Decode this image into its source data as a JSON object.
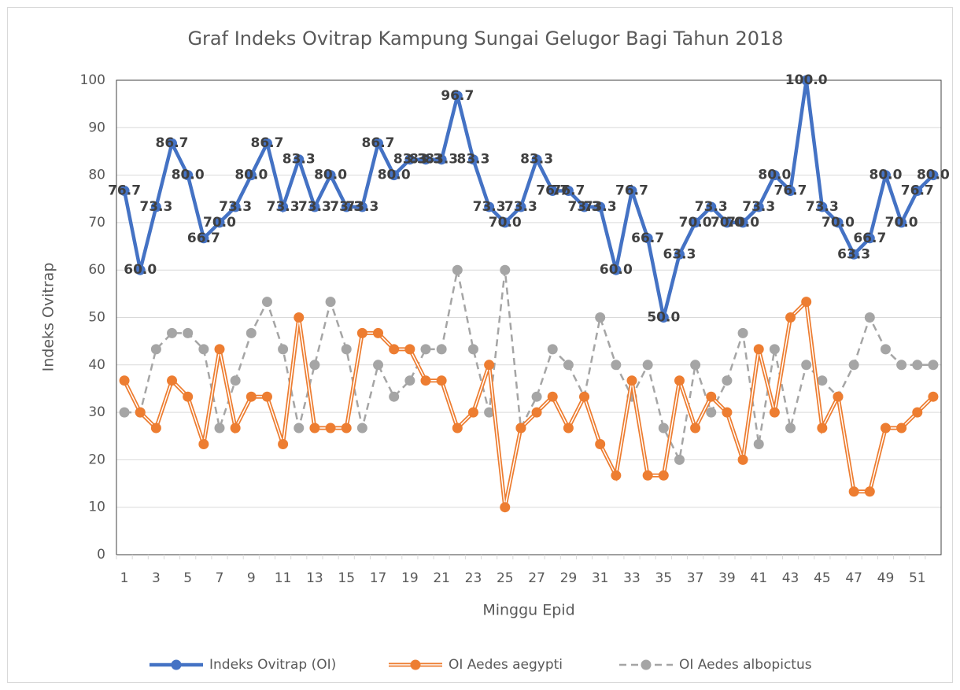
{
  "chart_data": {
    "type": "line",
    "title": "Graf Indeks Ovitrap Kampung Sungai Gelugor Bagi Tahun 2018",
    "x_label": "Minggu Epid",
    "y_label": "Indeks Ovitrap",
    "categories": [
      1,
      null,
      3,
      null,
      5,
      null,
      7,
      null,
      9,
      null,
      11,
      null,
      13,
      null,
      15,
      null,
      17,
      null,
      19,
      null,
      21,
      null,
      23,
      null,
      25,
      null,
      27,
      null,
      29,
      null,
      31,
      null,
      33,
      null,
      35,
      null,
      37,
      null,
      39,
      null,
      41,
      null,
      43,
      null,
      45,
      null,
      47,
      null,
      49,
      null,
      51,
      null
    ],
    "ylim": [
      0,
      100
    ],
    "yticks": [
      0,
      10,
      20,
      30,
      40,
      50,
      60,
      70,
      80,
      90,
      100
    ],
    "grid": true,
    "legend": "bottom",
    "series": [
      {
        "name": "Indeks Ovitrap (OI)",
        "color": "#4472c4",
        "style": "solid",
        "values": [
          76.7,
          60,
          73.3,
          86.7,
          80,
          66.7,
          70,
          73.3,
          80,
          86.7,
          73.3,
          83.3,
          73.3,
          80,
          73.3,
          73.3,
          86.7,
          80,
          83.3,
          83.3,
          83.3,
          96.7,
          83.3,
          73.3,
          70,
          73.3,
          83.3,
          76.7,
          76.7,
          73.3,
          73.3,
          60,
          76.7,
          66.7,
          50,
          63.3,
          70,
          73.3,
          70,
          70,
          73.3,
          80,
          76.7,
          100,
          73.3,
          70,
          63.3,
          66.7,
          80,
          70,
          76.7,
          80
        ],
        "value_labels": [
          "76.7",
          "60.0",
          "73.3",
          "86.7",
          "80.0",
          "66.7",
          "70.0",
          "73.3",
          "80.0",
          "86.7",
          "73.3",
          "83.3",
          "73.3",
          "80.0",
          "73.3",
          "73.3",
          "86.7",
          "80.0",
          "83.3",
          "83.3",
          "83.3",
          "96.7",
          "83.3",
          "73.3",
          "70.0",
          "73.3",
          "83.3",
          "76.7",
          "76.7",
          "73.3",
          "73.3",
          "60.0",
          "76.7",
          "66.7",
          "50.0",
          "63.3",
          "70.0",
          "73.3",
          "70.0",
          "70.0",
          "73.3",
          "80.0",
          "76.7",
          "100.0",
          "73.3",
          "70.0",
          "63.3",
          "66.7",
          "80.0",
          "70.0",
          "76.7",
          "80.0"
        ]
      },
      {
        "name": "OI Aedes aegypti",
        "color": "#ed7d31",
        "style": "double",
        "values": [
          36.7,
          30,
          26.7,
          36.7,
          33.3,
          23.3,
          43.3,
          26.7,
          33.3,
          33.3,
          23.3,
          50,
          26.7,
          26.7,
          26.7,
          46.7,
          46.7,
          43.3,
          43.3,
          36.7,
          36.7,
          26.7,
          30,
          40,
          10,
          26.7,
          30,
          33.3,
          26.7,
          33.3,
          23.3,
          16.7,
          36.7,
          16.7,
          16.7,
          36.7,
          26.7,
          33.3,
          30,
          20,
          43.3,
          30,
          50,
          53.3,
          26.7,
          33.3,
          13.3,
          13.3,
          26.7,
          26.7,
          30,
          33.3
        ]
      },
      {
        "name": "OI Aedes albopictus",
        "color": "#a5a5a5",
        "style": "dashed",
        "values": [
          30,
          30,
          43.3,
          46.7,
          46.7,
          43.3,
          26.7,
          36.7,
          46.7,
          53.3,
          43.3,
          26.7,
          40,
          53.3,
          43.3,
          26.7,
          40,
          33.3,
          36.7,
          43.3,
          43.3,
          60,
          43.3,
          30,
          60,
          26.7,
          33.3,
          43.3,
          40,
          33.3,
          50,
          40,
          33.3,
          40,
          26.7,
          20,
          40,
          30,
          36.7,
          46.7,
          23.3,
          43.3,
          26.7,
          40,
          36.7,
          33.3,
          40,
          50,
          43.3,
          40,
          40,
          40
        ]
      }
    ]
  }
}
